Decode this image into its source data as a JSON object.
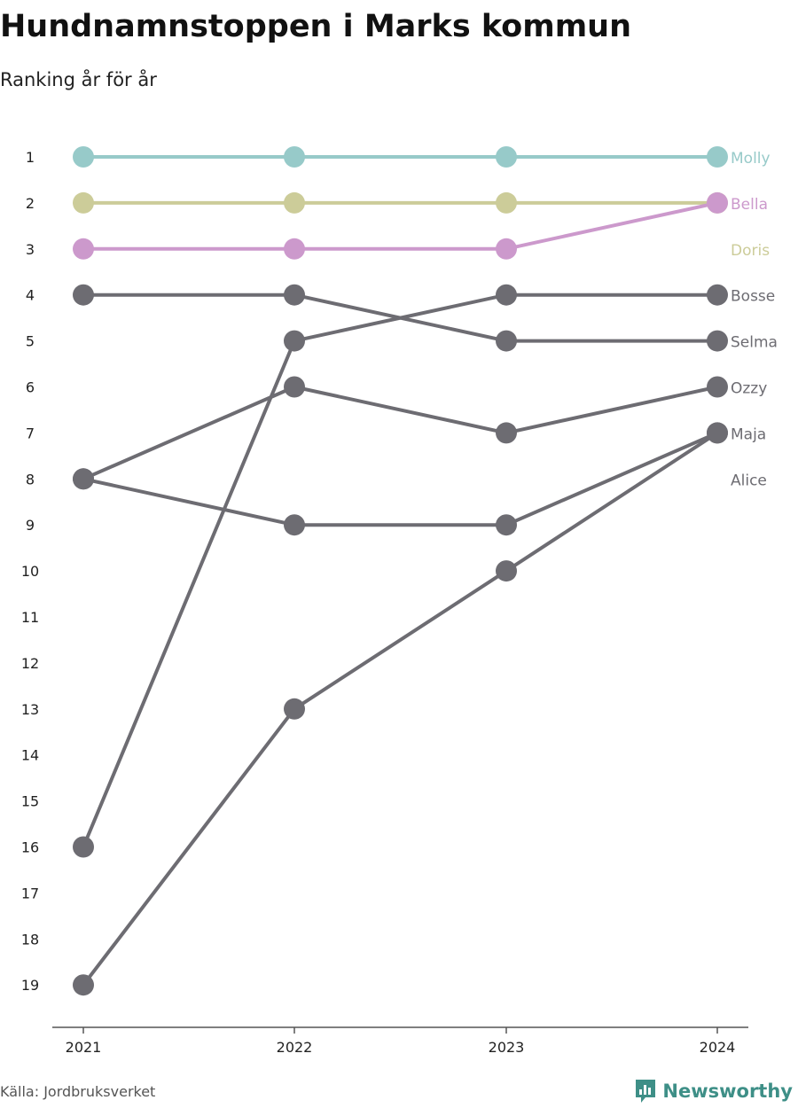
{
  "header": {
    "title": "Hundnamnstoppen i Marks kommun",
    "subtitle": "Ranking år för år"
  },
  "footer": {
    "source": "Källa: Jordbruksverket",
    "brand": "Newsworthy",
    "brand_icon": "bar-chart-speech-bubble-icon",
    "brand_color": "#3e8f87"
  },
  "chart_data": {
    "type": "line",
    "title": "Hundnamnstoppen i Marks kommun",
    "subtitle": "Ranking år för år",
    "x": [
      "2021",
      "2022",
      "2023",
      "2024"
    ],
    "y_ticks": [
      1,
      2,
      3,
      4,
      5,
      6,
      7,
      8,
      9,
      10,
      11,
      12,
      13,
      14,
      15,
      16,
      17,
      18,
      19
    ],
    "ylim": [
      1,
      19
    ],
    "y_reversed": true,
    "grid": false,
    "legend": "end-labels-right",
    "series": [
      {
        "name": "Molly",
        "values": [
          1,
          1,
          1,
          1
        ],
        "color": "#97cac9"
      },
      {
        "name": "Doris",
        "values": [
          2,
          2,
          2,
          2
        ],
        "color": "#cccc99"
      },
      {
        "name": "Bella",
        "values": [
          3,
          3,
          3,
          2
        ],
        "color": "#cc99cc"
      },
      {
        "name": "Bosse",
        "values": [
          16,
          5,
          4,
          4
        ],
        "color": "#6d6c72"
      },
      {
        "name": "Selma",
        "values": [
          4,
          4,
          5,
          5
        ],
        "color": "#6d6c72"
      },
      {
        "name": "Ozzy",
        "values": [
          8,
          6,
          7,
          6
        ],
        "color": "#6d6c72"
      },
      {
        "name": "Maja",
        "values": [
          8,
          9,
          9,
          7
        ],
        "color": "#6d6c72"
      },
      {
        "name": "Alice",
        "values": [
          19,
          13,
          10,
          7
        ],
        "color": "#6d6c72"
      }
    ],
    "end_labels": [
      {
        "name": "Molly",
        "rank": 1,
        "color": "#97cac9"
      },
      {
        "name": "Bella",
        "rank": 2,
        "color": "#cc99cc"
      },
      {
        "name": "Doris",
        "rank": 3,
        "color": "#cccc99"
      },
      {
        "name": "Bosse",
        "rank": 4,
        "color": "#6d6c72"
      },
      {
        "name": "Selma",
        "rank": 5,
        "color": "#6d6c72"
      },
      {
        "name": "Ozzy",
        "rank": 6,
        "color": "#6d6c72"
      },
      {
        "name": "Maja",
        "rank": 7,
        "color": "#6d6c72"
      },
      {
        "name": "Alice",
        "rank": 8,
        "color": "#6d6c72"
      }
    ]
  }
}
